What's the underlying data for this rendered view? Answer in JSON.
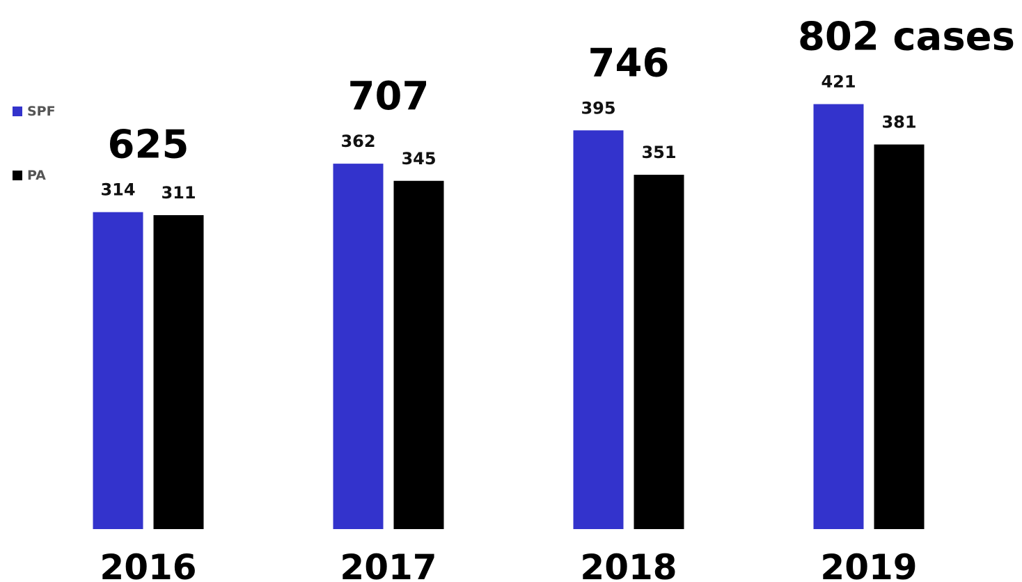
{
  "chart_data": {
    "type": "bar",
    "categories": [
      "2016",
      "2017",
      "2018",
      "2019"
    ],
    "series": [
      {
        "name": "SPF",
        "color": "#3333cc",
        "values": [
          314,
          362,
          395,
          421
        ]
      },
      {
        "name": "PA",
        "color": "#000000",
        "values": [
          311,
          345,
          351,
          381
        ]
      }
    ],
    "totals": [
      625,
      707,
      746,
      802
    ],
    "total_labels": [
      "625",
      "707",
      "746",
      "802 cases"
    ],
    "legend_position": "left",
    "grid": false,
    "ylim": [
      0,
      450
    ]
  }
}
